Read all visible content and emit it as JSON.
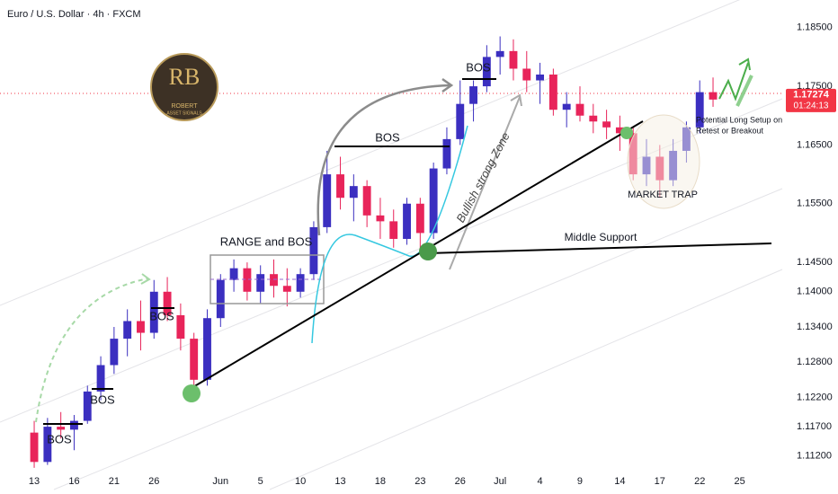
{
  "chart_data": {
    "type": "candlestick",
    "title": "Euro / U.S. Dollar · 4h · FXCM",
    "x": [
      0,
      1,
      2,
      3,
      4,
      5,
      6,
      7,
      8,
      9,
      10,
      11,
      12,
      13,
      14,
      15,
      16,
      17,
      18,
      19,
      20,
      21,
      22,
      23,
      24,
      25,
      26,
      27,
      28,
      29,
      30,
      31,
      32,
      33,
      34,
      35,
      36,
      37,
      38,
      39,
      40,
      41,
      42,
      43,
      44,
      45,
      46,
      47,
      48,
      49,
      50,
      51
    ],
    "open": [
      1.116,
      1.111,
      1.117,
      1.1165,
      1.118,
      1.123,
      1.1275,
      1.132,
      1.135,
      1.133,
      1.14,
      1.136,
      1.132,
      1.125,
      1.1355,
      1.142,
      1.144,
      1.14,
      1.143,
      1.141,
      1.14,
      1.143,
      1.151,
      1.16,
      1.156,
      1.158,
      1.153,
      1.152,
      1.149,
      1.155,
      1.15,
      1.161,
      1.166,
      1.172,
      1.175,
      1.18,
      1.181,
      1.178,
      1.176,
      1.177,
      1.171,
      1.172,
      1.17,
      1.169,
      1.168,
      1.167,
      1.16,
      1.163,
      1.159,
      1.164,
      1.168,
      1.174
    ],
    "high": [
      1.118,
      1.1185,
      1.1195,
      1.119,
      1.124,
      1.129,
      1.134,
      1.137,
      1.1385,
      1.142,
      1.1425,
      1.138,
      1.133,
      1.137,
      1.143,
      1.1455,
      1.145,
      1.1445,
      1.1455,
      1.144,
      1.144,
      1.152,
      1.164,
      1.163,
      1.16,
      1.159,
      1.156,
      1.154,
      1.156,
      1.156,
      1.162,
      1.168,
      1.176,
      1.176,
      1.182,
      1.1835,
      1.183,
      1.181,
      1.179,
      1.178,
      1.174,
      1.175,
      1.172,
      1.171,
      1.17,
      1.168,
      1.166,
      1.165,
      1.166,
      1.169,
      1.176,
      1.1765
    ],
    "low": [
      1.11,
      1.1105,
      1.115,
      1.113,
      1.1175,
      1.1215,
      1.126,
      1.129,
      1.13,
      1.132,
      1.135,
      1.13,
      1.1225,
      1.124,
      1.134,
      1.14,
      1.1385,
      1.138,
      1.139,
      1.1375,
      1.139,
      1.142,
      1.15,
      1.154,
      1.152,
      1.151,
      1.149,
      1.1475,
      1.148,
      1.147,
      1.149,
      1.16,
      1.165,
      1.169,
      1.174,
      1.177,
      1.176,
      1.174,
      1.172,
      1.17,
      1.168,
      1.169,
      1.167,
      1.166,
      1.164,
      1.159,
      1.158,
      1.156,
      1.158,
      1.162,
      1.167,
      1.1715
    ],
    "close": [
      1.111,
      1.117,
      1.1165,
      1.118,
      1.123,
      1.1275,
      1.132,
      1.135,
      1.133,
      1.14,
      1.136,
      1.132,
      1.125,
      1.1355,
      1.142,
      1.144,
      1.14,
      1.143,
      1.141,
      1.14,
      1.143,
      1.151,
      1.16,
      1.156,
      1.158,
      1.153,
      1.152,
      1.149,
      1.155,
      1.15,
      1.161,
      1.166,
      1.172,
      1.175,
      1.18,
      1.181,
      1.178,
      1.176,
      1.177,
      1.171,
      1.172,
      1.17,
      1.169,
      1.168,
      1.167,
      1.16,
      1.163,
      1.159,
      1.164,
      1.168,
      1.174,
      1.17274
    ],
    "up_color": "#3b2fc0",
    "down_color": "#e8245a",
    "xlim": [
      -2.57,
      56.2
    ],
    "xticks": [
      {
        "value": 0,
        "label": "13"
      },
      {
        "value": 3,
        "label": "16"
      },
      {
        "value": 6,
        "label": "21"
      },
      {
        "value": 9,
        "label": "26"
      },
      {
        "value": 14,
        "label": "Jun"
      },
      {
        "value": 17,
        "label": "5"
      },
      {
        "value": 20,
        "label": "10"
      },
      {
        "value": 23,
        "label": "13"
      },
      {
        "value": 26,
        "label": "18"
      },
      {
        "value": 29,
        "label": "23"
      },
      {
        "value": 32,
        "label": "26"
      },
      {
        "value": 35,
        "label": "Jul"
      },
      {
        "value": 38,
        "label": "4"
      },
      {
        "value": 41,
        "label": "9"
      },
      {
        "value": 44,
        "label": "14"
      },
      {
        "value": 47,
        "label": "17"
      },
      {
        "value": 50,
        "label": "22"
      },
      {
        "value": 53,
        "label": "25"
      }
    ],
    "ylim": [
      1.1086,
      1.1897
    ],
    "yticks": [
      {
        "value": 1.185,
        "label": "1.18500"
      },
      {
        "value": 1.175,
        "label": "1.17500"
      },
      {
        "value": 1.165,
        "label": "1.16500"
      },
      {
        "value": 1.155,
        "label": "1.15500"
      },
      {
        "value": 1.145,
        "label": "1.14500"
      },
      {
        "value": 1.14,
        "label": "1.14000"
      },
      {
        "value": 1.134,
        "label": "1.13400"
      },
      {
        "value": 1.128,
        "label": "1.12800"
      },
      {
        "value": 1.122,
        "label": "1.12200"
      },
      {
        "value": 1.117,
        "label": "1.11700"
      },
      {
        "value": 1.112,
        "label": "1.11200"
      }
    ],
    "last_price": 1.17274,
    "countdown": "01:24:13",
    "price_color": "#f23645",
    "annotations": [
      "BOS",
      "BOS",
      "BOS",
      "RANGE and BOS",
      "BOS",
      "BOS",
      "Bullish strong Zone",
      "Middle Support",
      "MARKET TRAP",
      "Potential Long Setup on",
      "Retest or Breakout"
    ]
  },
  "logo": {
    "initials": "RB",
    "name": "ROBERT",
    "tagline": "ASSET SIGNALS"
  }
}
